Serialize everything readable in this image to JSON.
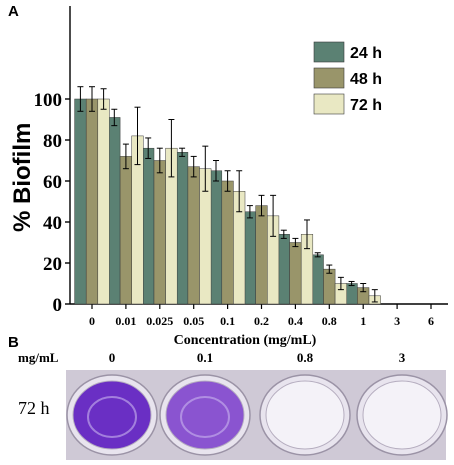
{
  "panel_a": {
    "letter": "A"
  },
  "panel_b": {
    "letter": "B",
    "unit_label": "mg/mL",
    "row_label": "72 h",
    "wells": [
      {
        "label": "0",
        "stain": "dark"
      },
      {
        "label": "0.1",
        "stain": "medium"
      },
      {
        "label": "0.8",
        "stain": "clear"
      },
      {
        "label": "3",
        "stain": "clear"
      }
    ],
    "colors": {
      "dark": "#6a2fc4",
      "medium": "#8a54d0",
      "clear": "#f4f2f8",
      "background": "#cfc9d6"
    }
  },
  "chart_data": {
    "type": "bar",
    "xlabel": "Concentration (mg/mL)",
    "ylabel": "% Biofilm",
    "ylim": [
      0,
      105
    ],
    "yticks": [
      0,
      20,
      40,
      60,
      80,
      100
    ],
    "categories": [
      "0",
      "0.01",
      "0.025",
      "0.05",
      "0.1",
      "0.2",
      "0.4",
      "0.8",
      "1",
      "3",
      "6"
    ],
    "legend_position": "top-right",
    "grid": false,
    "series": [
      {
        "name": "24 h",
        "color": "#5b8173",
        "values": [
          100,
          91,
          76,
          74,
          65,
          45,
          34,
          24,
          10,
          0,
          0
        ],
        "errors": [
          6,
          4,
          5,
          2,
          5,
          3,
          2,
          1,
          1,
          0,
          0
        ]
      },
      {
        "name": "48 h",
        "color": "#99956a",
        "values": [
          100,
          72,
          70,
          67,
          60,
          48,
          30,
          17,
          8,
          0,
          0
        ],
        "errors": [
          6,
          6,
          6,
          5,
          5,
          5,
          2,
          2,
          2,
          0,
          0
        ]
      },
      {
        "name": "72 h",
        "color": "#e9e8c3",
        "values": [
          100,
          82,
          76,
          66,
          55,
          43,
          34,
          10,
          4,
          0,
          0
        ],
        "errors": [
          5,
          14,
          14,
          11,
          10,
          10,
          7,
          3,
          3,
          0,
          0
        ]
      }
    ]
  }
}
